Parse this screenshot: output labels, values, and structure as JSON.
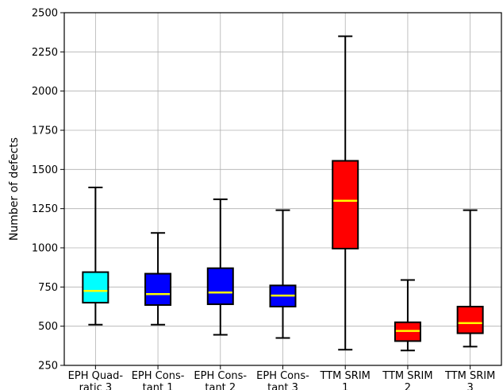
{
  "chart_data": {
    "type": "boxplot",
    "ylabel": "Number of defects",
    "xlabel": "",
    "title": "",
    "ylim": [
      250,
      2500
    ],
    "yticks": [
      250,
      500,
      750,
      1000,
      1250,
      1500,
      1750,
      2000,
      2250,
      2500
    ],
    "grid": true,
    "categories": [
      [
        "EPH Quad-",
        "ratic 3"
      ],
      [
        "EPH Cons-",
        "tant 1"
      ],
      [
        "EPH Cons-",
        "tant 2"
      ],
      [
        "EPH Cons-",
        "tant 3"
      ],
      [
        "TTM SRIM",
        "1"
      ],
      [
        "TTM SRIM",
        "2"
      ],
      [
        "TTM SRIM",
        "3"
      ]
    ],
    "boxes": [
      {
        "whisker_low": 510,
        "q1": 650,
        "median": 725,
        "q3": 845,
        "whisker_high": 1385,
        "color": "#00ffff"
      },
      {
        "whisker_low": 510,
        "q1": 635,
        "median": 705,
        "q3": 835,
        "whisker_high": 1095,
        "color": "#0000ff"
      },
      {
        "whisker_low": 445,
        "q1": 640,
        "median": 715,
        "q3": 870,
        "whisker_high": 1310,
        "color": "#0000ff"
      },
      {
        "whisker_low": 425,
        "q1": 625,
        "median": 695,
        "q3": 760,
        "whisker_high": 1240,
        "color": "#0000ff"
      },
      {
        "whisker_low": 350,
        "q1": 995,
        "median": 1300,
        "q3": 1555,
        "whisker_high": 2350,
        "color": "#ff0000"
      },
      {
        "whisker_low": 345,
        "q1": 405,
        "median": 470,
        "q3": 525,
        "whisker_high": 795,
        "color": "#ff0000"
      },
      {
        "whisker_low": 370,
        "q1": 455,
        "median": 520,
        "q3": 625,
        "whisker_high": 1240,
        "color": "#ff0000"
      }
    ],
    "median_color": "#ffff00"
  }
}
